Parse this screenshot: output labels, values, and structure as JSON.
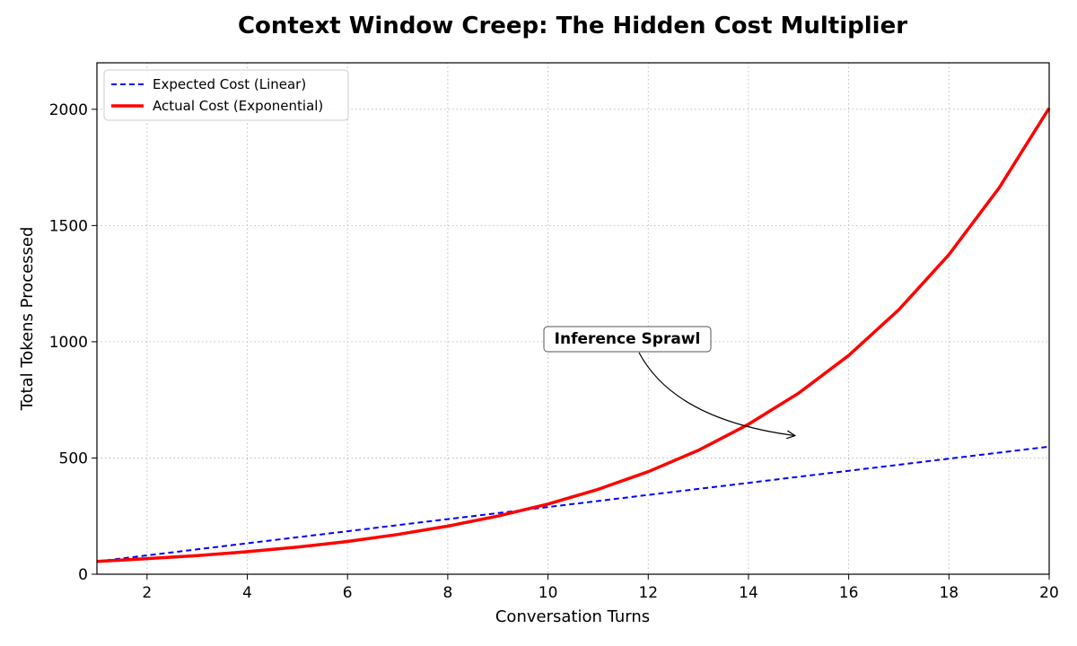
{
  "chart_data": {
    "type": "line",
    "title": "Context Window Creep: The Hidden Cost Multiplier",
    "xlabel": "Conversation Turns",
    "ylabel": "Total Tokens Processed",
    "xlim": [
      1,
      20
    ],
    "ylim": [
      0,
      2200
    ],
    "xticks": [
      2,
      4,
      6,
      8,
      10,
      12,
      14,
      16,
      18,
      20
    ],
    "yticks": [
      0,
      500,
      1000,
      1500,
      2000
    ],
    "grid": true,
    "legend_position": "top-left",
    "x": [
      1,
      2,
      3,
      4,
      5,
      6,
      7,
      8,
      9,
      10,
      11,
      12,
      13,
      14,
      15,
      16,
      17,
      18,
      19,
      20
    ],
    "series": [
      {
        "name": "Expected Cost (Linear)",
        "style": "dashed",
        "color": "#0000ff",
        "values": [
          55,
          81,
          107,
          133,
          159,
          185,
          211,
          237,
          263,
          289,
          315,
          341,
          367,
          393,
          419,
          445,
          471,
          497,
          523,
          549
        ]
      },
      {
        "name": "Actual Cost (Exponential)",
        "style": "solid",
        "color": "#ff0000",
        "values": [
          55,
          67,
          80,
          97,
          117,
          141,
          171,
          207,
          250,
          302,
          365,
          441,
          533,
          645,
          779,
          941,
          1138,
          1375,
          1662,
          2005
        ]
      }
    ],
    "annotations": [
      {
        "text": "Inference Sprawl",
        "x": 10.8,
        "y": 1010,
        "arrow_to": [
          15,
          600
        ]
      }
    ]
  }
}
